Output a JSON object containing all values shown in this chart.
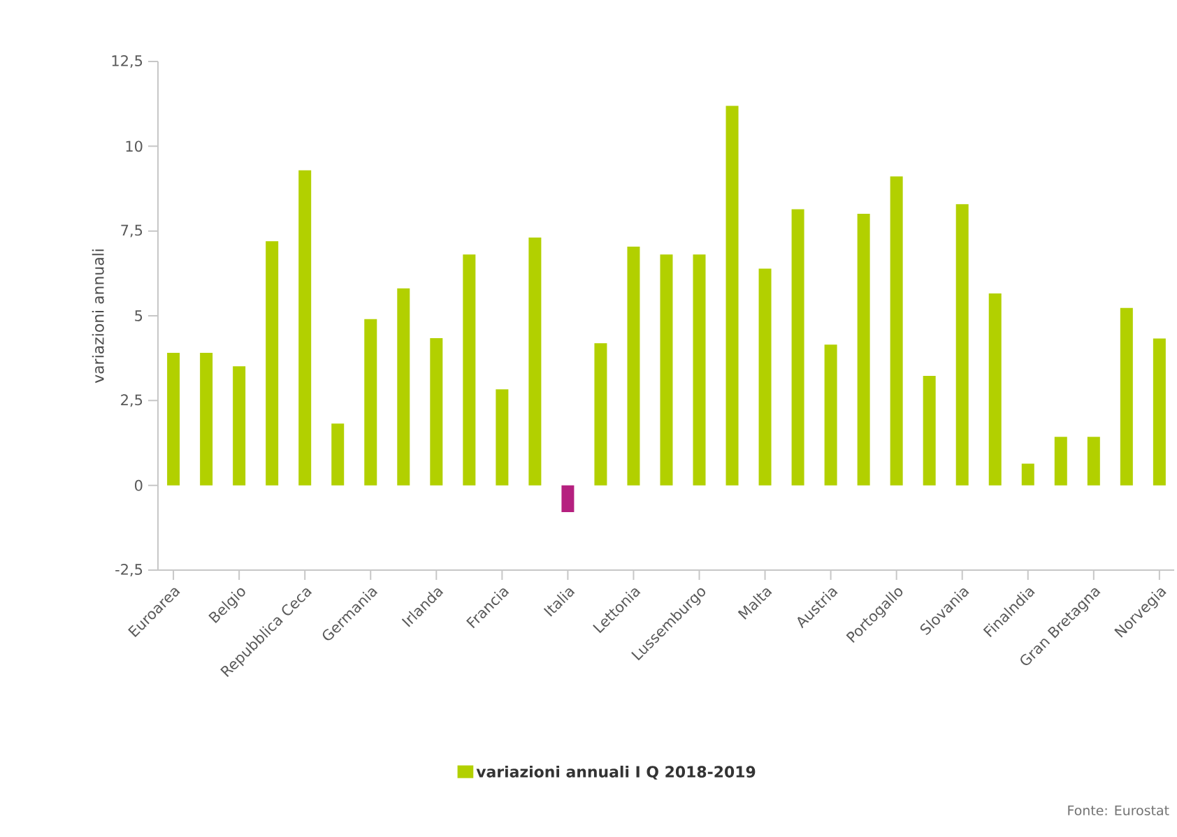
{
  "chart_data": {
    "type": "bar",
    "categories": [
      "Euroarea",
      null,
      "Belgio",
      null,
      "Repubblica Ceca",
      null,
      "Germania",
      null,
      "Irlanda",
      null,
      "Francia",
      null,
      "Italia",
      null,
      "Lettonia",
      null,
      "Lussemburgo",
      null,
      "Malta",
      null,
      "Austria",
      null,
      "Portogallo",
      null,
      "Slovania",
      null,
      "Finalndia",
      null,
      "Gran Bretagna",
      null,
      "Norvegia"
    ],
    "series": [
      {
        "name": "variazioni annuali I Q 2018-2019",
        "color": "#b2d000",
        "values": [
          3.91,
          3.91,
          3.51,
          7.2,
          9.29,
          1.82,
          4.9,
          5.81,
          4.34,
          6.81,
          2.83,
          7.31,
          -0.79,
          4.19,
          7.04,
          6.81,
          6.81,
          11.19,
          6.39,
          8.14,
          4.15,
          8.01,
          9.11,
          3.23,
          8.29,
          5.66,
          0.64,
          1.43,
          1.43,
          5.23,
          4.33
        ],
        "colors": [
          "#b2d000",
          "#b2d000",
          "#b2d000",
          "#b2d000",
          "#b2d000",
          "#b2d000",
          "#b2d000",
          "#b2d000",
          "#b2d000",
          "#b2d000",
          "#b2d000",
          "#b2d000",
          "#b5207f",
          "#b2d000",
          "#b2d000",
          "#b2d000",
          "#b2d000",
          "#b2d000",
          "#b2d000",
          "#b2d000",
          "#b2d000",
          "#b2d000",
          "#b2d000",
          "#b2d000",
          "#b2d000",
          "#b2d000",
          "#b2d000",
          "#b2d000",
          "#b2d000",
          "#b2d000",
          "#b2d000"
        ]
      }
    ],
    "ylabel": "variazioni annuali",
    "ylim": [
      -2.5,
      12.5
    ],
    "yticks": [
      {
        "value": -2.5,
        "label": "-2,5"
      },
      0,
      {
        "value": 2.5,
        "label": "2,5"
      },
      5,
      {
        "value": 7.5,
        "label": "7,5"
      },
      10,
      {
        "value": 12.5,
        "label": "12,5"
      }
    ],
    "grid": false,
    "legend": "bottom",
    "annotations": [
      "Fonte: Eurostat"
    ]
  }
}
